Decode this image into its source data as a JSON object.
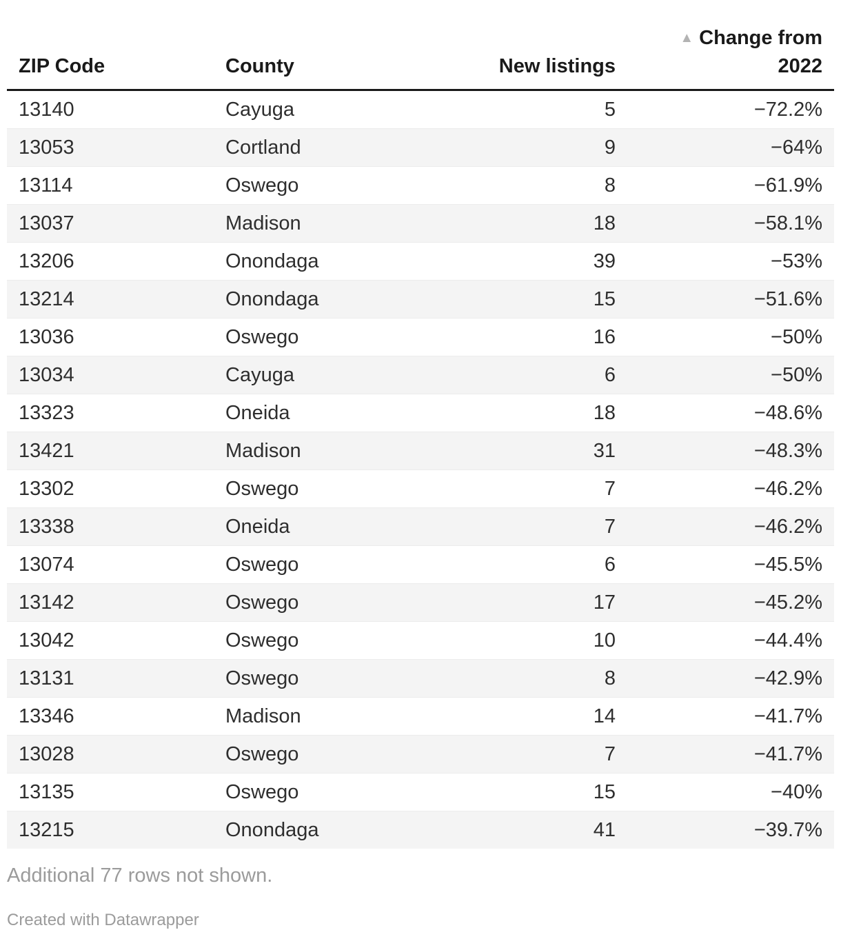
{
  "chart_data": {
    "type": "table",
    "columns": [
      {
        "key": "zip",
        "label": "ZIP Code",
        "align": "left"
      },
      {
        "key": "county",
        "label": "County",
        "align": "left"
      },
      {
        "key": "new_listings",
        "label": "New listings",
        "align": "right"
      },
      {
        "key": "change",
        "label": "Change from 2022",
        "label_lines": [
          "Change from",
          "2022"
        ],
        "align": "right",
        "sorted": "ascending",
        "sort_icon_glyph": "▲"
      }
    ],
    "rows": [
      {
        "zip": "13140",
        "county": "Cayuga",
        "new_listings": 5,
        "change": "−72.2%"
      },
      {
        "zip": "13053",
        "county": "Cortland",
        "new_listings": 9,
        "change": "−64%"
      },
      {
        "zip": "13114",
        "county": "Oswego",
        "new_listings": 8,
        "change": "−61.9%"
      },
      {
        "zip": "13037",
        "county": "Madison",
        "new_listings": 18,
        "change": "−58.1%"
      },
      {
        "zip": "13206",
        "county": "Onondaga",
        "new_listings": 39,
        "change": "−53%"
      },
      {
        "zip": "13214",
        "county": "Onondaga",
        "new_listings": 15,
        "change": "−51.6%"
      },
      {
        "zip": "13036",
        "county": "Oswego",
        "new_listings": 16,
        "change": "−50%"
      },
      {
        "zip": "13034",
        "county": "Cayuga",
        "new_listings": 6,
        "change": "−50%"
      },
      {
        "zip": "13323",
        "county": "Oneida",
        "new_listings": 18,
        "change": "−48.6%"
      },
      {
        "zip": "13421",
        "county": "Madison",
        "new_listings": 31,
        "change": "−48.3%"
      },
      {
        "zip": "13302",
        "county": "Oswego",
        "new_listings": 7,
        "change": "−46.2%"
      },
      {
        "zip": "13338",
        "county": "Oneida",
        "new_listings": 7,
        "change": "−46.2%"
      },
      {
        "zip": "13074",
        "county": "Oswego",
        "new_listings": 6,
        "change": "−45.5%"
      },
      {
        "zip": "13142",
        "county": "Oswego",
        "new_listings": 17,
        "change": "−45.2%"
      },
      {
        "zip": "13042",
        "county": "Oswego",
        "new_listings": 10,
        "change": "−44.4%"
      },
      {
        "zip": "13131",
        "county": "Oswego",
        "new_listings": 8,
        "change": "−42.9%"
      },
      {
        "zip": "13346",
        "county": "Madison",
        "new_listings": 14,
        "change": "−41.7%"
      },
      {
        "zip": "13028",
        "county": "Oswego",
        "new_listings": 7,
        "change": "−41.7%"
      },
      {
        "zip": "13135",
        "county": "Oswego",
        "new_listings": 15,
        "change": "−40%"
      },
      {
        "zip": "13215",
        "county": "Onondaga",
        "new_listings": 41,
        "change": "−39.7%"
      }
    ],
    "sort": {
      "column": "Change from 2022",
      "direction": "ascending"
    },
    "note": "Additional 77 rows not shown."
  },
  "footer": {
    "attribution": "Created with Datawrapper"
  },
  "colors": {
    "header_text": "#1a1a1a",
    "header_rule": "#1a1a1a",
    "body_text": "#2e2e2e",
    "row_stripe": "#f4f4f4",
    "row_divider": "#ececec",
    "sort_icon": "#b3b3b3",
    "note_text": "#9b9b9b"
  }
}
